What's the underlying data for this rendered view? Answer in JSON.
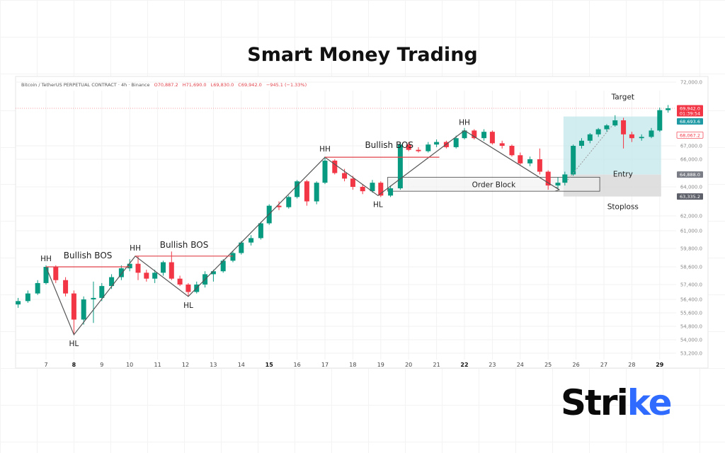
{
  "title": "Smart Money Trading",
  "logo": {
    "text_main": "Stri",
    "text_accent": "ke",
    "accent_color": "#2f6bff"
  },
  "chart_data": {
    "type": "candlestick",
    "header": {
      "symbol": "Bitcoin / TetherUS PERPETUAL CONTRACT · 4h · Binance",
      "open": "O70,887.2",
      "high": "H71,690.0",
      "low": "L69,830.0",
      "close": "C69,942.0",
      "change": "−945.1 (−1.33%)"
    },
    "colors": {
      "up": "#089981",
      "down": "#f23645",
      "annotation_line": "#555555",
      "bos_line": "#e0424a"
    },
    "x_ticks": [
      "7",
      "8",
      "9",
      "10",
      "11",
      "12",
      "13",
      "14",
      "15",
      "16",
      "17",
      "18",
      "19",
      "20",
      "21",
      "22",
      "23",
      "24",
      "25",
      "26",
      "27",
      "28",
      "29"
    ],
    "y_ticks": [
      "72,000.0",
      "67,000.0",
      "66,000.0",
      "64,000.0",
      "62,000.0",
      "61,000.0",
      "59,800.0",
      "58,600.0",
      "57,400.0",
      "56,400.0",
      "55,600.0",
      "54,800.0",
      "54,000.0",
      "53,200.0"
    ],
    "candles_day_o_h_l_c": [
      [
        6.0,
        56100,
        56500,
        55900,
        56300
      ],
      [
        6.35,
        56300,
        57000,
        56200,
        56800
      ],
      [
        6.7,
        56800,
        57700,
        56700,
        57500
      ],
      [
        7.0,
        57500,
        58700,
        57400,
        58600
      ],
      [
        7.35,
        58600,
        58700,
        57500,
        57700
      ],
      [
        7.7,
        57700,
        57900,
        56600,
        56800
      ],
      [
        8.0,
        56800,
        57000,
        54300,
        55200
      ],
      [
        8.35,
        55200,
        56600,
        54900,
        56400
      ],
      [
        8.7,
        56400,
        57600,
        55000,
        56500
      ],
      [
        9.0,
        56500,
        57500,
        56300,
        57300
      ],
      [
        9.35,
        57300,
        58100,
        57100,
        57900
      ],
      [
        9.7,
        57900,
        58700,
        57700,
        58500
      ],
      [
        10.0,
        58500,
        59100,
        58300,
        58800
      ],
      [
        10.3,
        58800,
        59300,
        57700,
        58200
      ],
      [
        10.6,
        58200,
        58400,
        57600,
        57800
      ],
      [
        10.9,
        57800,
        58400,
        57500,
        58200
      ],
      [
        11.2,
        58200,
        59000,
        58000,
        58900
      ],
      [
        11.5,
        58900,
        59600,
        57700,
        57800
      ],
      [
        11.8,
        57800,
        58000,
        57300,
        57400
      ],
      [
        12.1,
        57400,
        57500,
        56600,
        56900
      ],
      [
        12.4,
        56900,
        57600,
        56800,
        57400
      ],
      [
        12.7,
        57400,
        58300,
        57200,
        58100
      ],
      [
        13.0,
        58100,
        58400,
        57600,
        58300
      ],
      [
        13.35,
        58300,
        59100,
        58200,
        59000
      ],
      [
        13.7,
        59000,
        59600,
        58900,
        59500
      ],
      [
        14.0,
        59500,
        60300,
        59400,
        60200
      ],
      [
        14.35,
        60200,
        60700,
        60000,
        60500
      ],
      [
        14.7,
        60500,
        61600,
        60400,
        61500
      ],
      [
        15.0,
        61500,
        62800,
        61400,
        62700
      ],
      [
        15.35,
        62700,
        63000,
        62400,
        62600
      ],
      [
        15.7,
        62600,
        63400,
        62500,
        63300
      ],
      [
        16.0,
        63300,
        64500,
        63200,
        64400
      ],
      [
        16.35,
        64400,
        64500,
        62700,
        63000
      ],
      [
        16.7,
        63000,
        64400,
        62800,
        64300
      ],
      [
        17.0,
        64300,
        66200,
        64200,
        65900
      ],
      [
        17.35,
        65900,
        66000,
        64900,
        65000
      ],
      [
        17.7,
        65000,
        65300,
        64400,
        64600
      ],
      [
        18.0,
        64600,
        64800,
        63800,
        64000
      ],
      [
        18.35,
        64000,
        64200,
        63500,
        63700
      ],
      [
        18.7,
        63700,
        64500,
        63600,
        64300
      ],
      [
        19.0,
        64300,
        64400,
        63300,
        63400
      ],
      [
        19.35,
        63400,
        64100,
        63300,
        63900
      ],
      [
        19.7,
        63900,
        67300,
        63800,
        67100
      ],
      [
        20.0,
        67100,
        67300,
        66600,
        66700
      ],
      [
        20.35,
        66700,
        66900,
        66500,
        66600
      ],
      [
        20.7,
        66600,
        67300,
        66500,
        67100
      ],
      [
        21.0,
        67100,
        67500,
        66900,
        67300
      ],
      [
        21.35,
        67300,
        67400,
        66800,
        66900
      ],
      [
        21.7,
        66900,
        67800,
        66800,
        67600
      ],
      [
        22.0,
        67600,
        68400,
        67500,
        68200
      ],
      [
        22.35,
        68200,
        68300,
        67500,
        67600
      ],
      [
        22.7,
        67600,
        68300,
        67400,
        68100
      ],
      [
        23.0,
        68100,
        68200,
        67100,
        67200
      ],
      [
        23.35,
        67200,
        67400,
        66800,
        67000
      ],
      [
        23.7,
        67000,
        67100,
        66200,
        66300
      ],
      [
        24.0,
        66300,
        66500,
        65600,
        65700
      ],
      [
        24.35,
        65700,
        66200,
        65500,
        66000
      ],
      [
        24.7,
        66000,
        66800,
        64900,
        65100
      ],
      [
        25.0,
        65100,
        65200,
        63800,
        64100
      ],
      [
        25.35,
        64100,
        64700,
        63900,
        64300
      ],
      [
        25.6,
        64300,
        65100,
        64100,
        64900
      ],
      [
        25.9,
        64900,
        67100,
        64800,
        67000
      ],
      [
        26.2,
        67000,
        67600,
        66800,
        67400
      ],
      [
        26.5,
        67400,
        68000,
        67200,
        67900
      ],
      [
        26.8,
        67900,
        68400,
        67700,
        68300
      ],
      [
        27.1,
        68300,
        68700,
        68100,
        68600
      ],
      [
        27.4,
        68600,
        69400,
        68500,
        69000
      ],
      [
        27.7,
        69000,
        69200,
        66800,
        67900
      ],
      [
        28.0,
        67900,
        68100,
        67300,
        67600
      ],
      [
        28.35,
        67600,
        67900,
        67400,
        67700
      ],
      [
        28.7,
        67700,
        68400,
        67600,
        68200
      ],
      [
        29.0,
        68200,
        70000,
        68100,
        69800
      ],
      [
        29.3,
        69800,
        70200,
        69600,
        69942
      ]
    ],
    "swings": [
      {
        "label": "HH",
        "day": 7.0,
        "price": 58600,
        "pos": "above"
      },
      {
        "label": "HL",
        "day": 8.0,
        "price": 54300,
        "pos": "below"
      },
      {
        "label": "HH",
        "day": 10.2,
        "price": 59300,
        "pos": "above"
      },
      {
        "label": "HL",
        "day": 12.1,
        "price": 56600,
        "pos": "below"
      },
      {
        "label": "HH",
        "day": 17.0,
        "price": 66150,
        "pos": "above"
      },
      {
        "label": "HL",
        "day": 18.9,
        "price": 63400,
        "pos": "below"
      },
      {
        "label": "HH",
        "day": 22.0,
        "price": 68200,
        "pos": "above"
      },
      {
        "label": "",
        "day": 25.4,
        "price": 63800,
        "pos": "none"
      }
    ],
    "bos": [
      {
        "label": "Bullish BOS",
        "price": 58600,
        "from_day": 7.0,
        "to_day": 10.0
      },
      {
        "label": "Bullish BOS",
        "price": 59300,
        "from_day": 10.2,
        "to_day": 13.7
      },
      {
        "label": "Bullish BOS",
        "price": 66150,
        "from_day": 17.0,
        "to_day": 21.1
      }
    ],
    "order_block": {
      "label": "Order Block",
      "from_day": 19.25,
      "to_day": 26.85,
      "top": 64700,
      "bottom": 63700
    },
    "position": {
      "from_day": 25.55,
      "to_day": 29.05,
      "target": 69300,
      "entry": 64888,
      "stop": 63335,
      "target_label": "Target",
      "entry_label": "Entry",
      "stop_label": "Stoploss"
    },
    "price_tags": [
      {
        "text": "69,942.0",
        "sub": "01:39:54",
        "price": 69942,
        "bg": "#f23645"
      },
      {
        "text": "68,693.6",
        "price": 68693.6,
        "bg": "#1f9aa5"
      },
      {
        "text": "68,067.2",
        "price": 68067.2,
        "bg": "outline"
      },
      {
        "text": "64,888.0",
        "price": 64888,
        "bg": "#7a7d85"
      },
      {
        "text": "63,335.2",
        "price": 63335.2,
        "bg": "#5d6069"
      }
    ]
  }
}
